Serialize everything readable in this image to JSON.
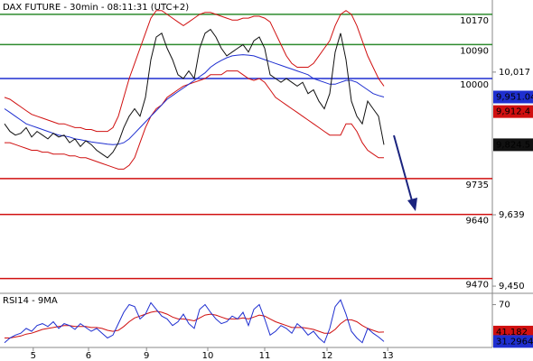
{
  "chart_data": [
    {
      "type": "line",
      "title": "DAX FUTURE - 30min - 08:11:31 (UTC+2)",
      "x": [
        0,
        1,
        2,
        3,
        4,
        5,
        6,
        7,
        8,
        9,
        10,
        11,
        12,
        13,
        14,
        15,
        16,
        17,
        18,
        19,
        20,
        21,
        22,
        23,
        24,
        25,
        26,
        27,
        28,
        29,
        30,
        31,
        32,
        33,
        34,
        35,
        36,
        37,
        38,
        39,
        40,
        41,
        42,
        43,
        44,
        45,
        46,
        47,
        48,
        49,
        50,
        51,
        52,
        53,
        54,
        55,
        56,
        57,
        58,
        59,
        60,
        61,
        62,
        63,
        64,
        65,
        66,
        67,
        68,
        69,
        70
      ],
      "xlim": [
        -0.8333,
        90
      ],
      "ylim": [
        9431,
        10208
      ],
      "yticks": [
        {
          "value": 10017,
          "label": "10,017"
        },
        {
          "value": 9639,
          "label": "9,639"
        },
        {
          "value": 9450,
          "label": "9,450"
        }
      ],
      "levels": [
        {
          "value": 10170,
          "color": "#2e8b2e"
        },
        {
          "value": 10090,
          "color": "#2e8b2e"
        },
        {
          "value": 10000,
          "color": "#1f2fd0"
        },
        {
          "value": 9735,
          "color": "#d01010"
        },
        {
          "value": 9640,
          "color": "#d01010"
        },
        {
          "value": 9470,
          "color": "#d01010"
        }
      ],
      "series": [
        {
          "color": "#d01010",
          "values": [
            9950,
            9945,
            9935,
            9925,
            9915,
            9905,
            9900,
            9895,
            9890,
            9885,
            9880,
            9880,
            9875,
            9870,
            9870,
            9865,
            9865,
            9860,
            9860,
            9860,
            9870,
            9900,
            9950,
            10000,
            10040,
            10080,
            10120,
            10160,
            10180,
            10180,
            10170,
            10160,
            10150,
            10140,
            10150,
            10160,
            10170,
            10175,
            10175,
            10170,
            10165,
            10160,
            10155,
            10155,
            10160,
            10160,
            10165,
            10165,
            10160,
            10150,
            10120,
            10090,
            10060,
            10040,
            10030,
            10030,
            10030,
            10040,
            10060,
            10080,
            10100,
            10140,
            10170,
            10180,
            10170,
            10140,
            10100,
            10060,
            10030,
            10000,
            9980
          ]
        },
        {
          "color": "#d01010",
          "values": [
            9830,
            9830,
            9825,
            9820,
            9815,
            9810,
            9810,
            9805,
            9805,
            9800,
            9800,
            9800,
            9795,
            9795,
            9790,
            9790,
            9785,
            9780,
            9775,
            9770,
            9765,
            9760,
            9760,
            9770,
            9790,
            9830,
            9870,
            9900,
            9920,
            9930,
            9950,
            9960,
            9970,
            9980,
            9985,
            9990,
            9995,
            10000,
            10010,
            10010,
            10010,
            10020,
            10020,
            10020,
            10010,
            10000,
            9995,
            10000,
            9990,
            9970,
            9950,
            9940,
            9930,
            9920,
            9910,
            9900,
            9890,
            9880,
            9870,
            9860,
            9850,
            9850,
            9850,
            9880,
            9880,
            9860,
            9830,
            9810,
            9800,
            9790,
            9790
          ]
        },
        {
          "color": "#1f2fd0",
          "values": [
            9920,
            9910,
            9900,
            9890,
            9880,
            9875,
            9870,
            9865,
            9860,
            9855,
            9850,
            9848,
            9845,
            9840,
            9838,
            9835,
            9832,
            9830,
            9828,
            9826,
            9825,
            9826,
            9830,
            9840,
            9855,
            9870,
            9885,
            9900,
            9915,
            9930,
            9945,
            9955,
            9965,
            9975,
            9985,
            9995,
            10005,
            10015,
            10030,
            10040,
            10048,
            10055,
            10060,
            10062,
            10063,
            10062,
            10060,
            10055,
            10050,
            10045,
            10040,
            10035,
            10030,
            10025,
            10020,
            10015,
            10010,
            10000,
            9995,
            9990,
            9985,
            9985,
            9990,
            9995,
            9995,
            9990,
            9980,
            9970,
            9960,
            9955,
            9951.04
          ]
        },
        {
          "color": "#111111",
          "values": [
            9880,
            9860,
            9850,
            9855,
            9870,
            9845,
            9860,
            9850,
            9840,
            9855,
            9845,
            9850,
            9830,
            9840,
            9820,
            9835,
            9825,
            9810,
            9800,
            9790,
            9805,
            9830,
            9870,
            9900,
            9920,
            9900,
            9950,
            10050,
            10110,
            10120,
            10080,
            10050,
            10010,
            10000,
            10020,
            10000,
            10080,
            10120,
            10130,
            10110,
            10080,
            10060,
            10070,
            10080,
            10090,
            10070,
            10100,
            10110,
            10080,
            10010,
            10000,
            9990,
            10000,
            9990,
            9980,
            9990,
            9960,
            9970,
            9940,
            9920,
            9960,
            10070,
            10120,
            10050,
            9940,
            9900,
            9880,
            9940,
            9920,
            9900,
            9824.5
          ]
        }
      ],
      "price_boxes": [
        {
          "value": 9951.04,
          "label": "9,951.04",
          "color": "#1f2fd0"
        },
        {
          "value": 9912.4,
          "label": "9,912.4",
          "color": "#d01010"
        },
        {
          "value": 9824.5,
          "label": "9,824.5",
          "color": "#111111"
        }
      ]
    },
    {
      "type": "line",
      "title": "RSI14 - 9MA",
      "x": [
        0,
        1,
        2,
        3,
        4,
        5,
        6,
        7,
        8,
        9,
        10,
        11,
        12,
        13,
        14,
        15,
        16,
        17,
        18,
        19,
        20,
        21,
        22,
        23,
        24,
        25,
        26,
        27,
        28,
        29,
        30,
        31,
        32,
        33,
        34,
        35,
        36,
        37,
        38,
        39,
        40,
        41,
        42,
        43,
        44,
        45,
        46,
        47,
        48,
        49,
        50,
        51,
        52,
        53,
        54,
        55,
        56,
        57,
        58,
        59,
        60,
        61,
        62,
        63,
        64,
        65,
        66,
        67,
        68,
        69,
        70
      ],
      "xlim": [
        -0.8333,
        90
      ],
      "ylim": [
        25,
        80
      ],
      "yticks": [
        70
      ],
      "xticks": [
        {
          "value": 5.3,
          "label": "5"
        },
        {
          "value": 15.5,
          "label": "6"
        },
        {
          "value": 26.2,
          "label": "9"
        },
        {
          "value": 37.5,
          "label": "10"
        },
        {
          "value": 48,
          "label": "11"
        },
        {
          "value": 59.5,
          "label": "12"
        },
        {
          "value": 70.7,
          "label": "13"
        }
      ],
      "series": [
        {
          "color": "#d01010",
          "values": [
            35,
            35,
            36,
            37,
            39,
            40,
            42,
            44,
            45,
            46,
            47,
            48,
            48,
            47,
            47,
            47,
            46,
            46,
            45,
            43,
            42,
            43,
            47,
            52,
            56,
            58,
            60,
            62,
            63,
            62,
            60,
            57,
            55,
            55,
            54,
            53,
            56,
            59,
            60,
            59,
            57,
            55,
            55,
            55,
            56,
            55,
            57,
            59,
            58,
            55,
            52,
            50,
            48,
            46,
            46,
            46,
            45,
            44,
            42,
            40,
            40,
            44,
            50,
            54,
            54,
            52,
            48,
            45,
            43,
            41,
            41.182
          ]
        },
        {
          "color": "#1f2fd0",
          "values": [
            30,
            35,
            38,
            40,
            45,
            42,
            48,
            50,
            47,
            52,
            45,
            50,
            48,
            44,
            50,
            46,
            42,
            45,
            40,
            35,
            38,
            50,
            62,
            70,
            68,
            55,
            60,
            72,
            65,
            58,
            55,
            48,
            52,
            60,
            50,
            45,
            65,
            70,
            62,
            55,
            50,
            52,
            58,
            55,
            62,
            48,
            65,
            70,
            55,
            38,
            42,
            48,
            45,
            40,
            50,
            45,
            38,
            42,
            35,
            30,
            45,
            68,
            75,
            60,
            42,
            35,
            30,
            45,
            40,
            36,
            31.2964
          ]
        }
      ],
      "price_boxes": [
        {
          "value": 41.182,
          "color": "#d01010"
        },
        {
          "value": 31.2964,
          "color": "#1f2fd0"
        }
      ]
    }
  ]
}
